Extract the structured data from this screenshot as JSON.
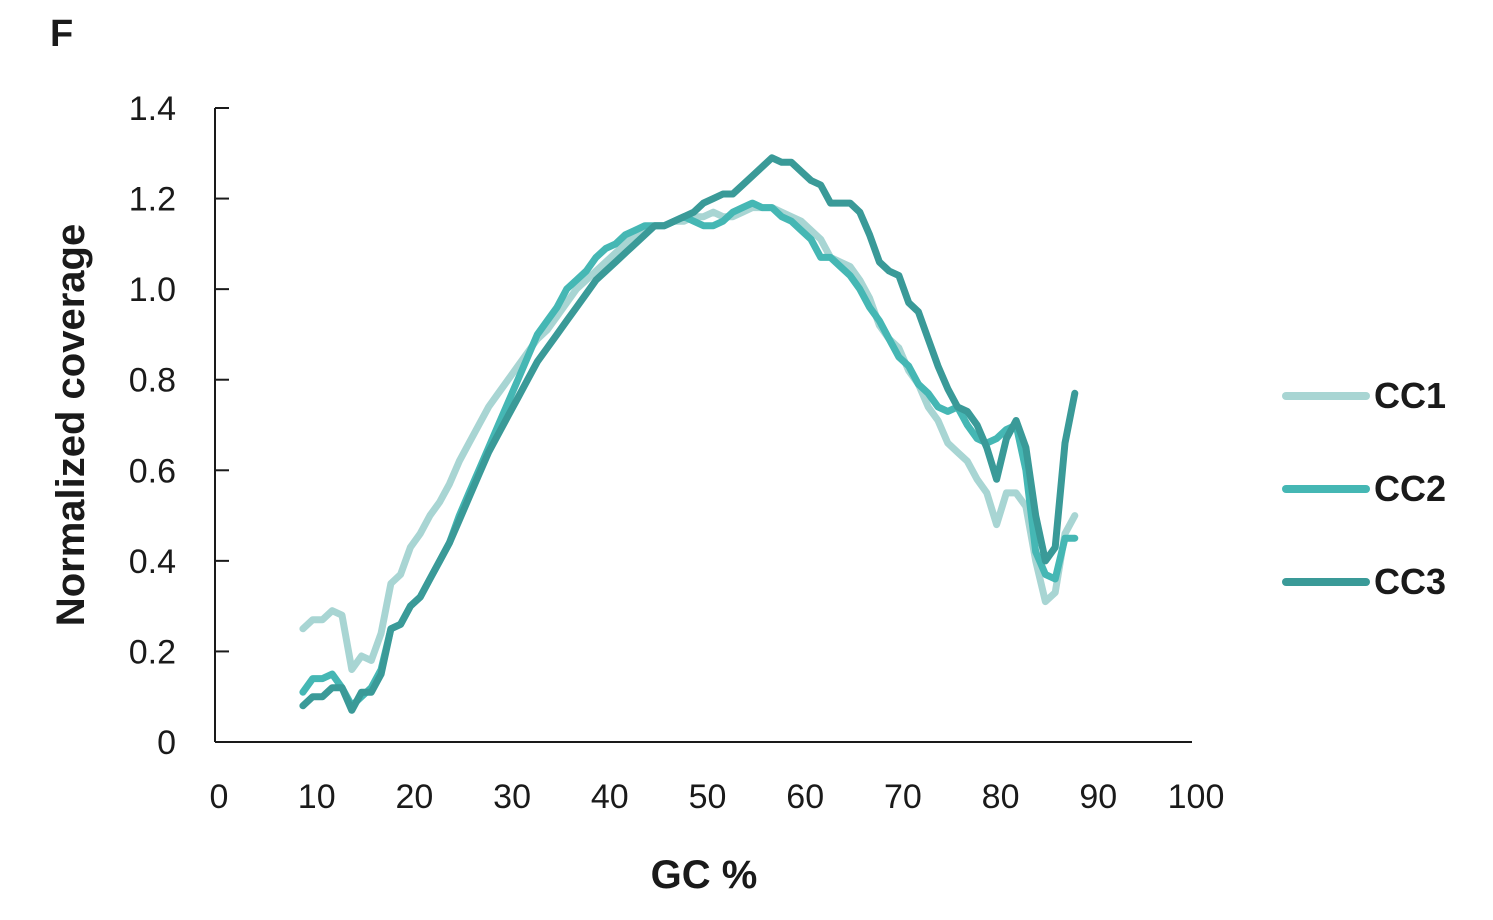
{
  "panel_label": "F",
  "chart_data": {
    "type": "line",
    "xlabel": "GC %",
    "ylabel": "Normalized coverage",
    "xlim": [
      0,
      100
    ],
    "ylim": [
      0,
      1.4
    ],
    "xticks": [
      0,
      10,
      20,
      30,
      40,
      50,
      60,
      70,
      80,
      90,
      100
    ],
    "xtick_labels": [
      "0",
      "10",
      "20",
      "30",
      "40",
      "50",
      "60",
      "70",
      "80",
      "90",
      "100"
    ],
    "yticks": [
      0,
      0.2,
      0.4,
      0.6,
      0.8,
      1.0,
      1.2,
      1.4
    ],
    "ytick_labels": [
      "0",
      "0.2",
      "0.4",
      "0.6",
      "0.8",
      "1.0",
      "1.2",
      "1.4"
    ],
    "grid": false,
    "legend_position": "right",
    "x": [
      9,
      10,
      11,
      12,
      13,
      14,
      15,
      16,
      17,
      18,
      19,
      20,
      21,
      22,
      23,
      24,
      25,
      26,
      27,
      28,
      29,
      30,
      31,
      32,
      33,
      34,
      35,
      36,
      37,
      38,
      39,
      40,
      41,
      42,
      43,
      44,
      45,
      46,
      47,
      48,
      49,
      50,
      51,
      52,
      53,
      54,
      55,
      56,
      57,
      58,
      59,
      60,
      61,
      62,
      63,
      64,
      65,
      66,
      67,
      68,
      69,
      70,
      71,
      72,
      73,
      74,
      75,
      76,
      77,
      78,
      79,
      80,
      81,
      82,
      83,
      84,
      85,
      86,
      87,
      88
    ],
    "series": [
      {
        "name": "CC1",
        "color": "#a8d5d3",
        "values": [
          0.25,
          0.27,
          0.27,
          0.29,
          0.28,
          0.16,
          0.19,
          0.18,
          0.24,
          0.35,
          0.37,
          0.43,
          0.46,
          0.5,
          0.53,
          0.57,
          0.62,
          0.66,
          0.7,
          0.74,
          0.77,
          0.8,
          0.83,
          0.86,
          0.89,
          0.91,
          0.94,
          0.97,
          1.0,
          1.02,
          1.04,
          1.06,
          1.08,
          1.1,
          1.12,
          1.13,
          1.14,
          1.14,
          1.15,
          1.15,
          1.16,
          1.16,
          1.17,
          1.16,
          1.16,
          1.17,
          1.18,
          1.18,
          1.18,
          1.17,
          1.16,
          1.15,
          1.13,
          1.11,
          1.07,
          1.06,
          1.05,
          1.02,
          0.98,
          0.92,
          0.89,
          0.87,
          0.82,
          0.79,
          0.74,
          0.71,
          0.66,
          0.64,
          0.62,
          0.58,
          0.55,
          0.48,
          0.55,
          0.55,
          0.52,
          0.4,
          0.31,
          0.33,
          0.46,
          0.5
        ]
      },
      {
        "name": "CC2",
        "color": "#45b7b4",
        "values": [
          0.11,
          0.14,
          0.14,
          0.15,
          0.12,
          0.08,
          0.1,
          0.12,
          0.16,
          0.25,
          0.26,
          0.3,
          0.32,
          0.36,
          0.4,
          0.44,
          0.5,
          0.55,
          0.6,
          0.65,
          0.7,
          0.75,
          0.8,
          0.85,
          0.9,
          0.93,
          0.96,
          1.0,
          1.02,
          1.04,
          1.07,
          1.09,
          1.1,
          1.12,
          1.13,
          1.14,
          1.14,
          1.14,
          1.15,
          1.16,
          1.15,
          1.14,
          1.14,
          1.15,
          1.17,
          1.18,
          1.19,
          1.18,
          1.18,
          1.16,
          1.15,
          1.13,
          1.11,
          1.07,
          1.07,
          1.05,
          1.03,
          1.0,
          0.96,
          0.93,
          0.89,
          0.85,
          0.83,
          0.79,
          0.77,
          0.74,
          0.73,
          0.74,
          0.7,
          0.67,
          0.66,
          0.67,
          0.69,
          0.7,
          0.6,
          0.42,
          0.37,
          0.36,
          0.45,
          0.45
        ]
      },
      {
        "name": "CC3",
        "color": "#3a9a98",
        "values": [
          0.08,
          0.1,
          0.1,
          0.12,
          0.12,
          0.07,
          0.11,
          0.11,
          0.15,
          0.25,
          0.26,
          0.3,
          0.32,
          0.36,
          0.4,
          0.44,
          0.49,
          0.54,
          0.59,
          0.64,
          0.68,
          0.72,
          0.76,
          0.8,
          0.84,
          0.87,
          0.9,
          0.93,
          0.96,
          0.99,
          1.02,
          1.04,
          1.06,
          1.08,
          1.1,
          1.12,
          1.14,
          1.14,
          1.15,
          1.16,
          1.17,
          1.19,
          1.2,
          1.21,
          1.21,
          1.23,
          1.25,
          1.27,
          1.29,
          1.28,
          1.28,
          1.26,
          1.24,
          1.23,
          1.19,
          1.19,
          1.19,
          1.17,
          1.12,
          1.06,
          1.04,
          1.03,
          0.97,
          0.95,
          0.89,
          0.83,
          0.78,
          0.74,
          0.73,
          0.7,
          0.65,
          0.58,
          0.67,
          0.71,
          0.65,
          0.5,
          0.4,
          0.43,
          0.66,
          0.77
        ]
      }
    ]
  }
}
